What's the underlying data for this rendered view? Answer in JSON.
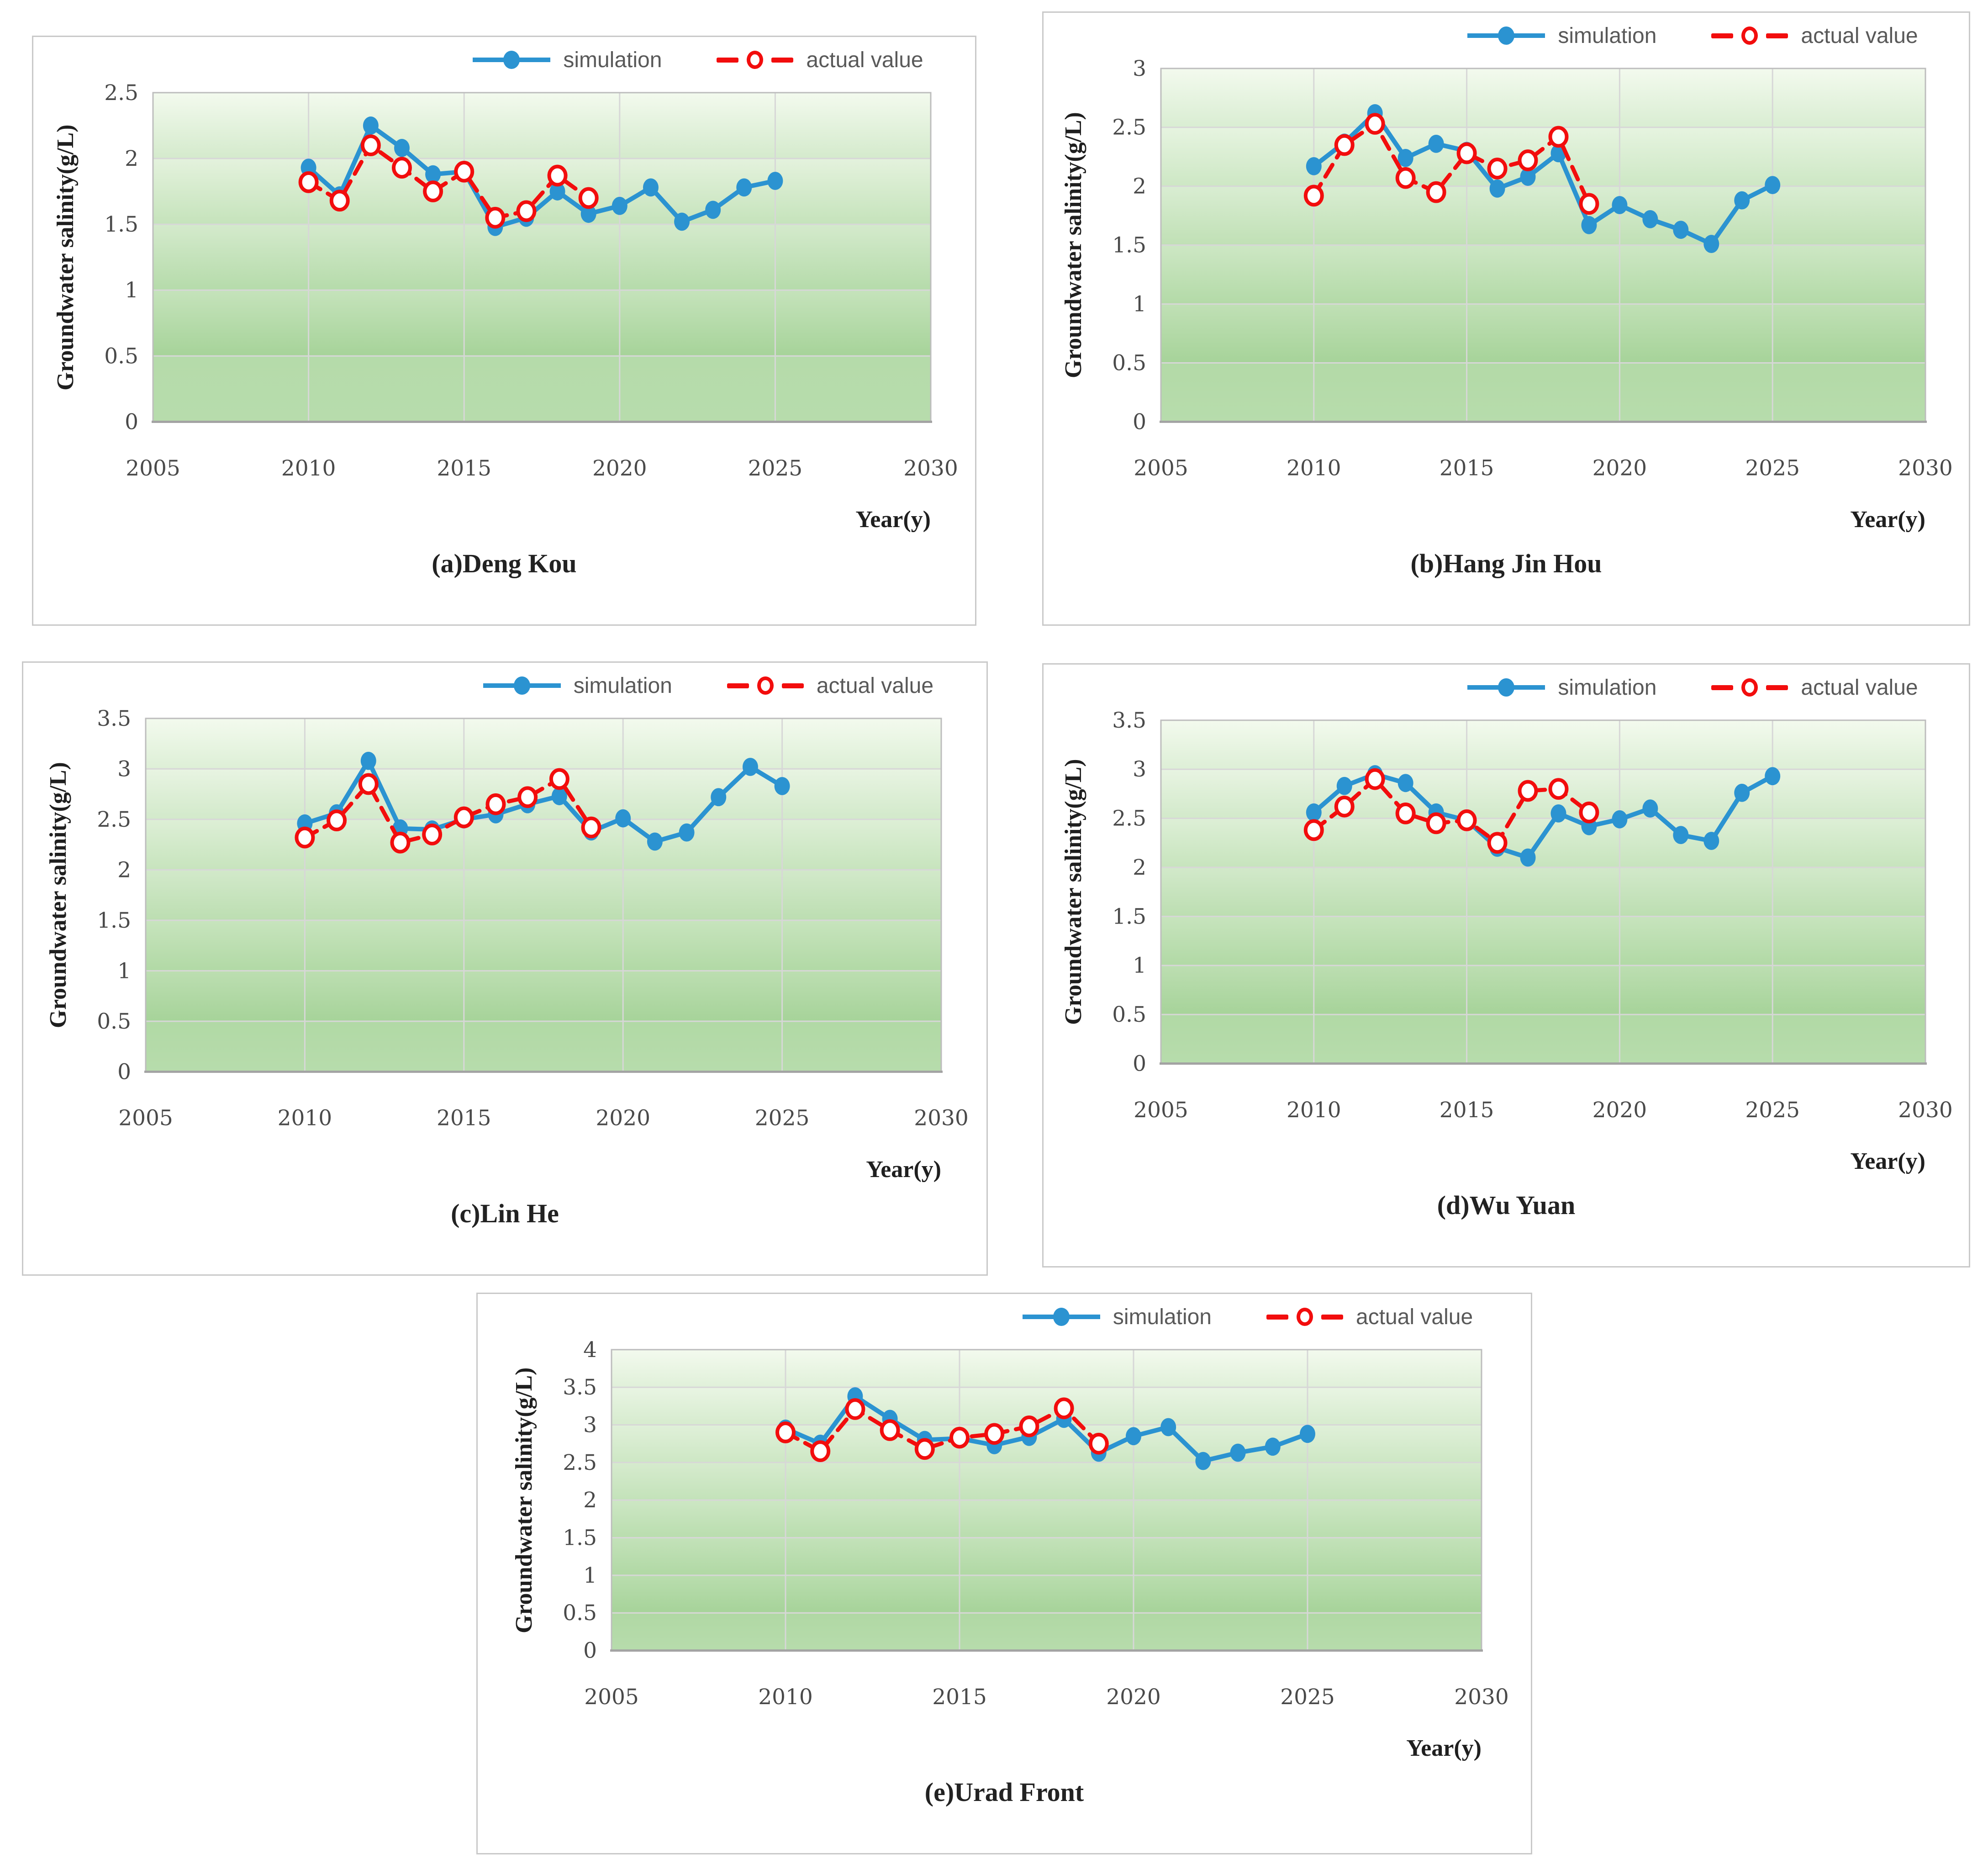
{
  "page": {
    "background": "#FFFFFF"
  },
  "legend": {
    "simulation": "simulation",
    "actual": "actual value"
  },
  "style": {
    "simulation_color": "#2B93D1",
    "actual_color": "#F20D0D",
    "grid_color": "#D7D7D7",
    "plot_border_color": "#BDBDBD",
    "axis_line_color": "#A3A3A3",
    "tick_text_color": "#4A4A4A",
    "legend_text_color": "#595959",
    "title_text_color": "#1F1F1F",
    "bg_gradient_light": "#F3FAEE",
    "bg_gradient_dark": "#A6D399"
  },
  "chart_data": [
    {
      "type": "line",
      "caption": "(a)Deng Kou",
      "ylabel": "Groundwater salinity(g/L)",
      "xlabel": "Year(y)",
      "xlim": [
        2005,
        2030
      ],
      "ylim": [
        0,
        2.5
      ],
      "ytick_step": 0.5,
      "xticks": [
        2005,
        2010,
        2015,
        2020,
        2025,
        2030
      ],
      "grid": true,
      "legend_position": "top-right",
      "series": [
        {
          "name": "simulation",
          "years": [
            2010,
            2011,
            2012,
            2013,
            2014,
            2015,
            2016,
            2017,
            2018,
            2019,
            2020,
            2021,
            2022,
            2023,
            2024,
            2025
          ],
          "values": [
            1.93,
            1.72,
            2.25,
            2.08,
            1.88,
            1.9,
            1.48,
            1.55,
            1.75,
            1.58,
            1.64,
            1.78,
            1.52,
            1.61,
            1.78,
            1.83
          ]
        },
        {
          "name": "actual value",
          "years": [
            2010,
            2011,
            2012,
            2013,
            2014,
            2015,
            2016,
            2017,
            2018,
            2019
          ],
          "values": [
            1.82,
            1.68,
            2.1,
            1.93,
            1.75,
            1.9,
            1.55,
            1.6,
            1.87,
            1.7
          ]
        }
      ]
    },
    {
      "type": "line",
      "caption": "(b)Hang Jin Hou",
      "ylabel": "Groundwater salinity(g/L)",
      "xlabel": "Year(y)",
      "xlim": [
        2005,
        2030
      ],
      "ylim": [
        0,
        3
      ],
      "ytick_step": 0.5,
      "xticks": [
        2005,
        2010,
        2015,
        2020,
        2025,
        2030
      ],
      "grid": true,
      "legend_position": "top-right",
      "series": [
        {
          "name": "simulation",
          "years": [
            2010,
            2011,
            2012,
            2013,
            2014,
            2015,
            2016,
            2017,
            2018,
            2019,
            2020,
            2021,
            2022,
            2023,
            2024,
            2025
          ],
          "values": [
            2.17,
            2.37,
            2.62,
            2.24,
            2.36,
            2.3,
            1.98,
            2.08,
            2.28,
            1.67,
            1.84,
            1.72,
            1.63,
            1.51,
            1.88,
            2.01
          ]
        },
        {
          "name": "actual value",
          "years": [
            2010,
            2011,
            2012,
            2013,
            2014,
            2015,
            2016,
            2017,
            2018,
            2019
          ],
          "values": [
            1.92,
            2.35,
            2.53,
            2.07,
            1.95,
            2.28,
            2.15,
            2.22,
            2.42,
            1.85
          ]
        }
      ]
    },
    {
      "type": "line",
      "caption": "(c)Lin He",
      "ylabel": "Groundwater salinity(g/L)",
      "xlabel": "Year(y)",
      "xlim": [
        2005,
        2030
      ],
      "ylim": [
        0,
        3.5
      ],
      "ytick_step": 0.5,
      "xticks": [
        2005,
        2010,
        2015,
        2020,
        2025,
        2030
      ],
      "grid": true,
      "legend_position": "top-right",
      "series": [
        {
          "name": "simulation",
          "years": [
            2010,
            2011,
            2012,
            2013,
            2014,
            2015,
            2016,
            2017,
            2018,
            2019,
            2020,
            2021,
            2022,
            2023,
            2024,
            2025
          ],
          "values": [
            2.46,
            2.56,
            3.08,
            2.41,
            2.4,
            2.5,
            2.55,
            2.65,
            2.73,
            2.38,
            2.51,
            2.28,
            2.37,
            2.72,
            3.02,
            2.83
          ]
        },
        {
          "name": "actual value",
          "years": [
            2010,
            2011,
            2012,
            2013,
            2014,
            2015,
            2016,
            2017,
            2018,
            2019
          ],
          "values": [
            2.32,
            2.49,
            2.85,
            2.27,
            2.35,
            2.52,
            2.65,
            2.72,
            2.9,
            2.42
          ]
        }
      ]
    },
    {
      "type": "line",
      "caption": "(d)Wu Yuan",
      "ylabel": "Groundwater salinity(g/L)",
      "xlabel": "Year(y)",
      "xlim": [
        2005,
        2030
      ],
      "ylim": [
        0,
        3.5
      ],
      "ytick_step": 0.5,
      "xticks": [
        2005,
        2010,
        2015,
        2020,
        2025,
        2030
      ],
      "grid": true,
      "legend_position": "top-right",
      "series": [
        {
          "name": "simulation",
          "years": [
            2010,
            2011,
            2012,
            2013,
            2014,
            2015,
            2016,
            2017,
            2018,
            2019,
            2020,
            2021,
            2022,
            2023,
            2024,
            2025
          ],
          "values": [
            2.56,
            2.83,
            2.95,
            2.86,
            2.56,
            2.48,
            2.2,
            2.1,
            2.55,
            2.42,
            2.49,
            2.6,
            2.33,
            2.27,
            2.76,
            2.93
          ]
        },
        {
          "name": "actual value",
          "years": [
            2010,
            2011,
            2012,
            2013,
            2014,
            2015,
            2016,
            2017,
            2018,
            2019
          ],
          "values": [
            2.38,
            2.62,
            2.9,
            2.55,
            2.45,
            2.48,
            2.25,
            2.78,
            2.8,
            2.56
          ]
        }
      ]
    },
    {
      "type": "line",
      "caption": "(e)Urad Front",
      "ylabel": "Groundwater salinity(g/L)",
      "xlabel": "Year(y)",
      "xlim": [
        2005,
        2030
      ],
      "ylim": [
        0,
        4
      ],
      "ytick_step": 0.5,
      "xticks": [
        2005,
        2010,
        2015,
        2020,
        2025,
        2030
      ],
      "grid": true,
      "legend_position": "top-right",
      "series": [
        {
          "name": "simulation",
          "years": [
            2010,
            2011,
            2012,
            2013,
            2014,
            2015,
            2016,
            2017,
            2018,
            2019,
            2020,
            2021,
            2022,
            2023,
            2024,
            2025
          ],
          "values": [
            2.95,
            2.75,
            3.38,
            3.08,
            2.8,
            2.82,
            2.73,
            2.84,
            3.08,
            2.63,
            2.85,
            2.97,
            2.52,
            2.63,
            2.71,
            2.88
          ]
        },
        {
          "name": "actual value",
          "years": [
            2010,
            2011,
            2012,
            2013,
            2014,
            2015,
            2016,
            2017,
            2018,
            2019
          ],
          "values": [
            2.9,
            2.65,
            3.21,
            2.93,
            2.68,
            2.83,
            2.88,
            2.98,
            3.22,
            2.75
          ]
        }
      ]
    }
  ]
}
